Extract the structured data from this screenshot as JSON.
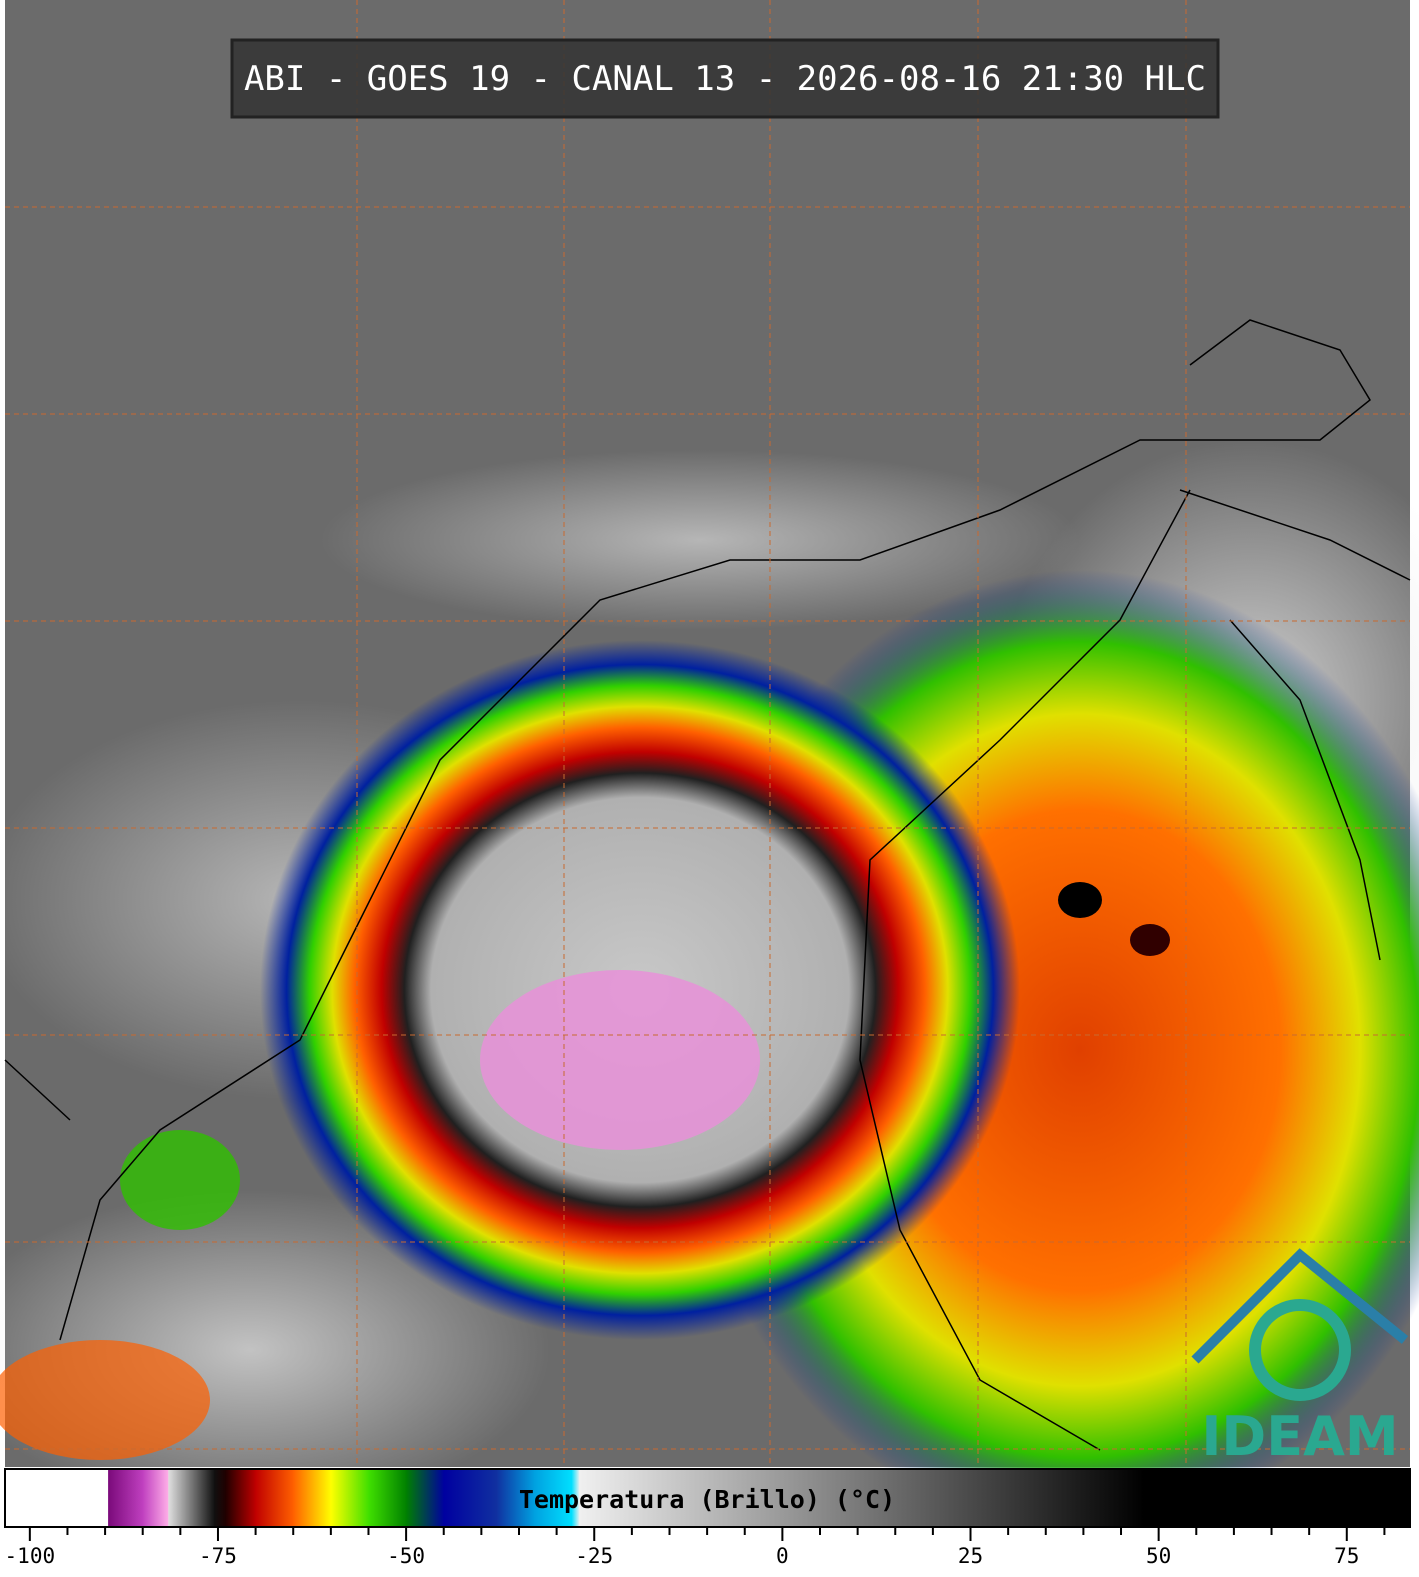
{
  "title": "ABI - GOES 19 - CANAL 13 - 2026-08-16 21:30 HLC",
  "logo": "IDEAM",
  "colorbar": {
    "label": "Temperatura (Brillo) (°C)",
    "lim": [
      -103.3,
      83.4
    ],
    "ticks": [
      -100,
      -75,
      -50,
      -25,
      0,
      25,
      50,
      75
    ],
    "minor_ticks": [
      -95,
      -90,
      -85,
      -80,
      -70,
      -65,
      -60,
      -55,
      -45,
      -40,
      -35,
      -30,
      -20,
      -15,
      -10,
      -5,
      5,
      10,
      15,
      20,
      30,
      35,
      40,
      45,
      55,
      60,
      65,
      70,
      80
    ],
    "colormap": [
      {
        "value": -103.3,
        "color": "#ffffff"
      },
      {
        "value": -89.6,
        "color": "#ffffff"
      },
      {
        "value": -89.6,
        "color": "#7a0a7a"
      },
      {
        "value": -85,
        "color": "#c040c0"
      },
      {
        "value": -81.6,
        "color": "#ffb0e8"
      },
      {
        "value": -81.6,
        "color": "#e0e0e0"
      },
      {
        "value": -75.5,
        "color": "#101010"
      },
      {
        "value": -74,
        "color": "#200000"
      },
      {
        "value": -70,
        "color": "#c00000"
      },
      {
        "value": -65,
        "color": "#ff6000"
      },
      {
        "value": -60,
        "color": "#ffff00"
      },
      {
        "value": -55,
        "color": "#40e000"
      },
      {
        "value": -50,
        "color": "#008000"
      },
      {
        "value": -45,
        "color": "#0000a0"
      },
      {
        "value": -38,
        "color": "#1030a0"
      },
      {
        "value": -33,
        "color": "#00a0e0"
      },
      {
        "value": -28,
        "color": "#00e0ff"
      },
      {
        "value": -27,
        "color": "#f0f0f0"
      },
      {
        "value": 48,
        "color": "#000000"
      },
      {
        "value": 83.4,
        "color": "#000000"
      }
    ]
  }
}
